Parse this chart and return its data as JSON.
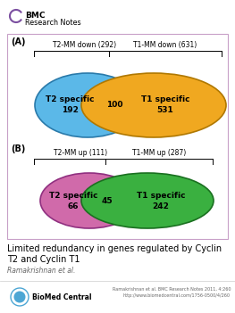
{
  "bg_color": "#ffffff",
  "border_color": "#c8a0c8",
  "fig_w": 2.63,
  "fig_h": 3.51,
  "dpi": 100,
  "panel_A": {
    "label": "(A)",
    "left_label": "T2-MM down (292)",
    "right_label": "T1-MM down (631)",
    "left_ellipse_color": "#5bb8e8",
    "left_ellipse_edge": "#2a7aaa",
    "right_ellipse_color": "#f0a820",
    "right_ellipse_edge": "#b07800",
    "left_text1": "T2 specific",
    "left_text2": "192",
    "right_text1": "T1 specific",
    "right_text2": "531",
    "overlap_text": "100"
  },
  "panel_B": {
    "label": "(B)",
    "left_label": "T2-MM up (111)",
    "right_label": "T1-MM up (287)",
    "left_ellipse_color": "#d06aaa",
    "left_ellipse_edge": "#903080",
    "right_ellipse_color": "#3ab040",
    "right_ellipse_edge": "#1a7020",
    "left_text1": "T2 specific",
    "left_text2": "66",
    "right_text1": "T1 specific",
    "right_text2": "242",
    "overlap_text": "45"
  },
  "title_line1": "Limited redundancy in genes regulated by Cyclin",
  "title_line2": "T2 and Cyclin T1",
  "author": "Ramakrishnan et al.",
  "journal_line1": "Ramakrishnan et al. BMC Research Notes 2011, 4:260",
  "journal_line2": "http://www.biomedcentral.com/1756-0500/4/260",
  "bmc_line1": "BMC",
  "bmc_line2": "Research Notes",
  "arc_color": "#7b4fa0"
}
